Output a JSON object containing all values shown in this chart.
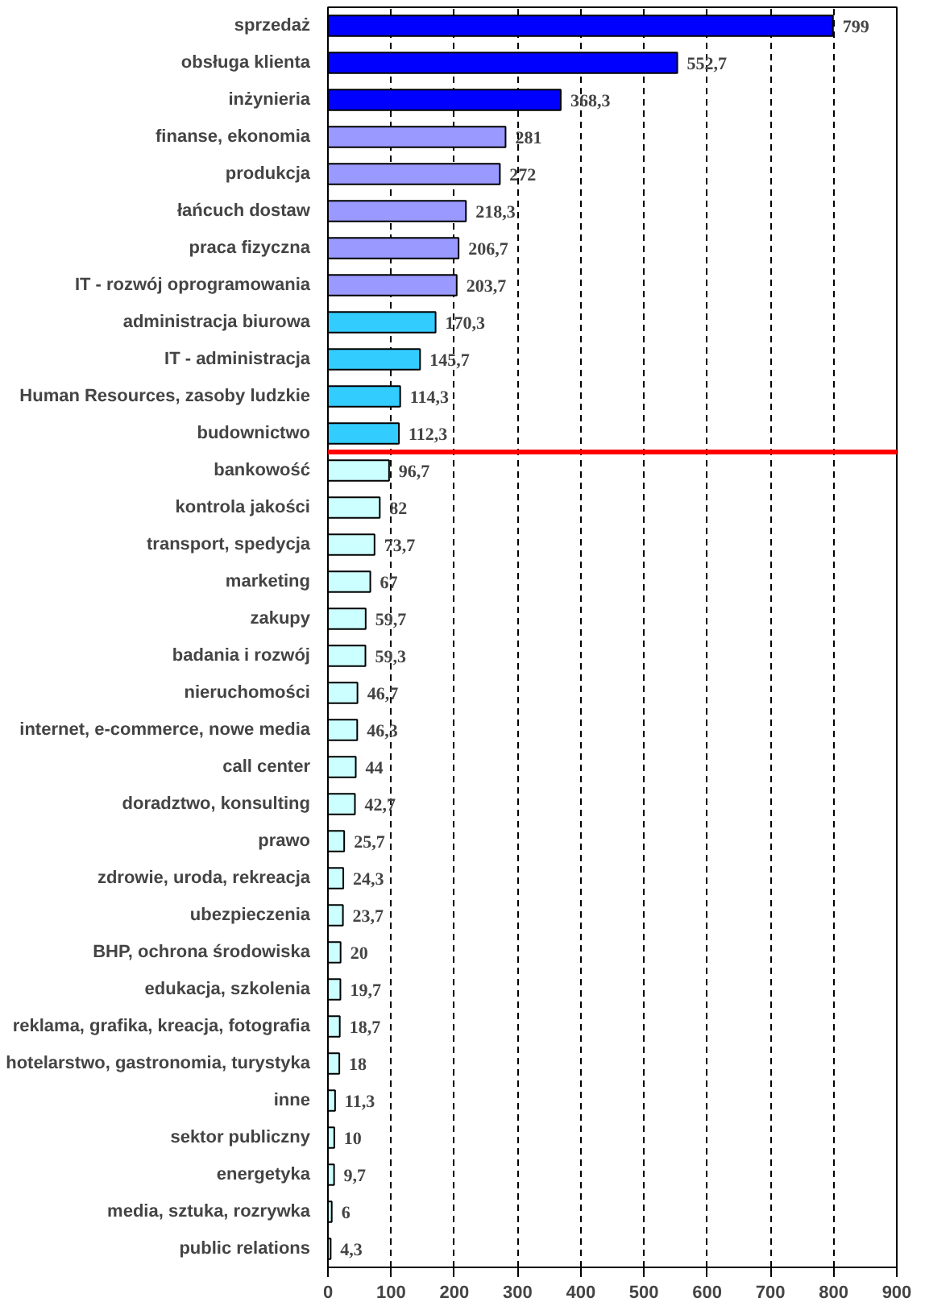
{
  "chart_data": {
    "type": "bar",
    "orientation": "horizontal",
    "categories": [
      "sprzedaż",
      "obsługa klienta",
      "inżynieria",
      "finanse, ekonomia",
      "produkcja",
      "łańcuch dostaw",
      "praca fizyczna",
      "IT - rozwój oprogramowania",
      "administracja biurowa",
      "IT - administracja",
      "Human Resources, zasoby ludzkie",
      "budownictwo",
      "bankowość",
      "kontrola jakości",
      "transport, spedycja",
      "marketing",
      "zakupy",
      "badania i rozwój",
      "nieruchomości",
      "internet, e-commerce, nowe media",
      "call center",
      "doradztwo, konsulting",
      "prawo",
      "zdrowie, uroda, rekreacja",
      "ubezpieczenia",
      "BHP, ochrona środowiska",
      "edukacja, szkolenia",
      "reklama, grafika, kreacja, fotografia",
      "hotelarstwo, gastronomia, turystyka",
      "inne",
      "sektor publiczny",
      "energetyka",
      "media, sztuka, rozrywka",
      "public relations"
    ],
    "values": [
      799,
      552.7,
      368.3,
      281,
      272,
      218.3,
      206.7,
      203.7,
      170.3,
      145.7,
      114.3,
      112.3,
      96.7,
      82,
      73.7,
      67,
      59.7,
      59.3,
      46.7,
      46.3,
      44,
      42.7,
      25.7,
      24.3,
      23.7,
      20,
      19.7,
      18.7,
      18,
      11.3,
      10,
      9.7,
      6,
      4.3
    ],
    "value_labels": [
      "799",
      "552,7",
      "368,3",
      "281",
      "272",
      "218,3",
      "206,7",
      "203,7",
      "170,3",
      "145,7",
      "114,3",
      "112,3",
      "96,7",
      "82",
      "73,7",
      "67",
      "59,7",
      "59,3",
      "46,7",
      "46,3",
      "44",
      "42,7",
      "25,7",
      "24,3",
      "23,7",
      "20",
      "19,7",
      "18,7",
      "18",
      "11,3",
      "10",
      "9,7",
      "6",
      "4,3"
    ],
    "colors": [
      "#0000ff",
      "#0000ff",
      "#0000ff",
      "#9999ff",
      "#9999ff",
      "#9999ff",
      "#9999ff",
      "#9999ff",
      "#33ccff",
      "#33ccff",
      "#33ccff",
      "#33ccff",
      "#ccffff",
      "#ccffff",
      "#ccffff",
      "#ccffff",
      "#ccffff",
      "#ccffff",
      "#ccffff",
      "#ccffff",
      "#ccffff",
      "#ccffff",
      "#ccffff",
      "#ccffff",
      "#ccffff",
      "#ccffff",
      "#ccffff",
      "#ccffff",
      "#ccffff",
      "#ccffff",
      "#ccffff",
      "#ccffff",
      "#ccffff",
      "#ccffff"
    ],
    "xlim": [
      0,
      900
    ],
    "xticks": [
      0,
      100,
      200,
      300,
      400,
      500,
      600,
      700,
      800,
      900
    ],
    "grid": "x",
    "ref_lines": [
      {
        "axis": "y",
        "value": "budownictwo",
        "color": "#ff0000",
        "line_style": "solid"
      }
    ]
  }
}
